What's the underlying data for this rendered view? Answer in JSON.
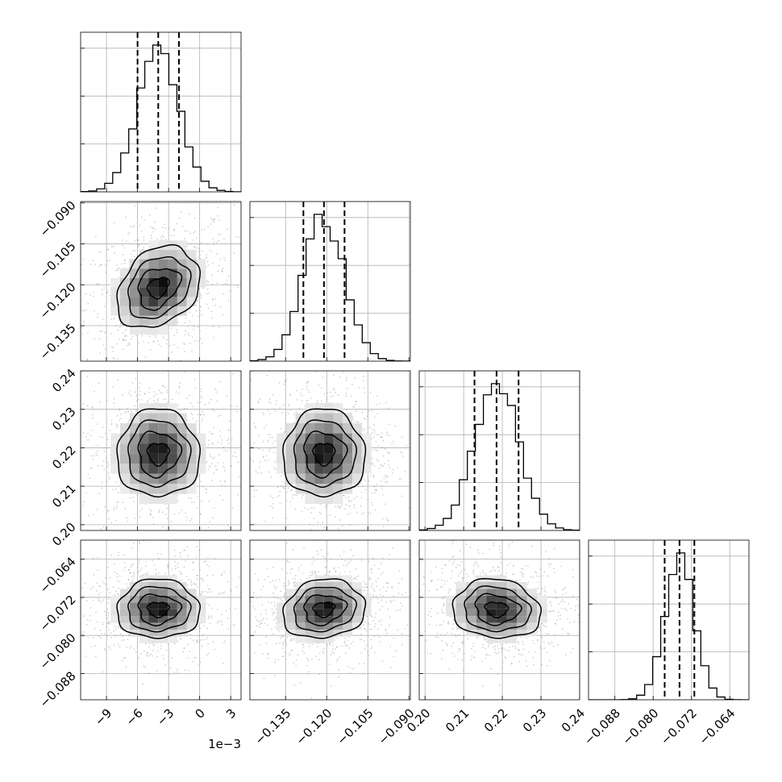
{
  "chart_data": {
    "type": "corner",
    "grid": true,
    "parameters": [
      {
        "mean": -0.004,
        "sd": 0.002,
        "range": [
          -0.0115,
          0.004
        ],
        "quantiles": [
          -0.006,
          -0.004,
          -0.002
        ],
        "ticks": [
          -0.009,
          -0.006,
          -0.003,
          0.0,
          0.003
        ],
        "tick_labels": [
          "−9",
          "−6",
          "−3",
          "0",
          "3"
        ],
        "offset_text": "1e−3"
      },
      {
        "mean": -0.121,
        "sd": 0.0075,
        "range": [
          -0.148,
          -0.0895
        ],
        "quantiles": [
          -0.1285,
          -0.121,
          -0.1135
        ],
        "ticks": [
          -0.135,
          -0.12,
          -0.105,
          -0.09
        ],
        "tick_labels": [
          "−0.135",
          "−0.120",
          "−0.105",
          "−0.090"
        ]
      },
      {
        "mean": 0.2185,
        "sd": 0.0057,
        "range": [
          0.1985,
          0.24
        ],
        "quantiles": [
          0.2128,
          0.2185,
          0.2242
        ],
        "ticks": [
          0.2,
          0.21,
          0.22,
          0.23,
          0.24
        ],
        "tick_labels": [
          "0.20",
          "0.21",
          "0.22",
          "0.23",
          "0.24"
        ]
      },
      {
        "mean": -0.0745,
        "sd": 0.0031,
        "range": [
          -0.0935,
          -0.06
        ],
        "quantiles": [
          -0.0776,
          -0.0745,
          -0.0714
        ],
        "ticks": [
          -0.088,
          -0.08,
          -0.072,
          -0.064
        ],
        "tick_labels": [
          "−0.088",
          "−0.080",
          "−0.072",
          "−0.064"
        ]
      }
    ],
    "correlations": [
      {
        "pair": [
          0,
          1
        ],
        "rho": 0.28
      },
      {
        "pair": [
          0,
          2
        ],
        "rho": 0.0
      },
      {
        "pair": [
          1,
          2
        ],
        "rho": 0.0
      },
      {
        "pair": [
          0,
          3
        ],
        "rho": 0.0
      },
      {
        "pair": [
          1,
          3
        ],
        "rho": 0.12
      },
      {
        "pair": [
          2,
          3
        ],
        "rho": -0.1
      }
    ],
    "histogram_bins": 20,
    "contour_levels_sigma": [
      0.5,
      1.0,
      1.5,
      2.0
    ],
    "scatter_color": "#9a9a9a",
    "line_color": "#000000",
    "grid_color": "#b0b0b0"
  }
}
